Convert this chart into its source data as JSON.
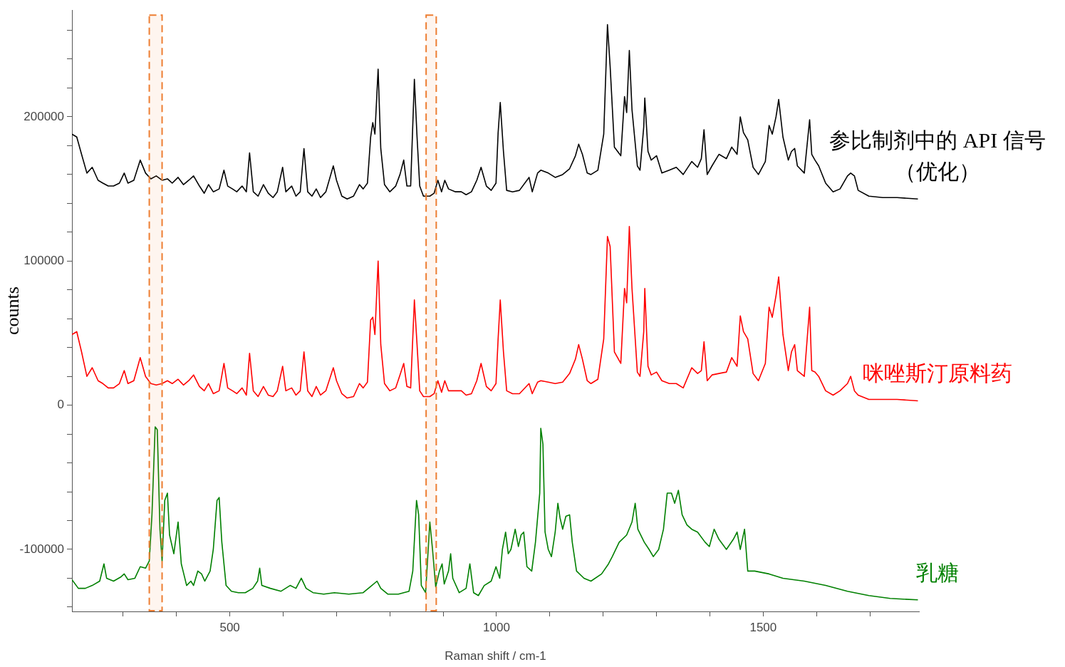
{
  "chart_data": {
    "type": "line",
    "xlabel": "Raman shift / cm-1",
    "ylabel": "counts",
    "xlim": [
      204,
      1792
    ],
    "ylim": [
      -143000,
      274000
    ],
    "xticks": [
      {
        "value": 300,
        "label": null
      },
      {
        "value": 400,
        "label": null
      },
      500,
      {
        "value": 600,
        "label": null
      },
      {
        "value": 700,
        "label": null
      },
      {
        "value": 800,
        "label": null
      },
      {
        "value": 900,
        "label": null
      },
      1000,
      {
        "value": 1100,
        "label": null
      },
      {
        "value": 1200,
        "label": null
      },
      {
        "value": 1300,
        "label": null
      },
      {
        "value": 1400,
        "label": null
      },
      1500,
      {
        "value": 1600,
        "label": null
      },
      {
        "value": 1700,
        "label": null
      }
    ],
    "yticks": [
      {
        "value": -140000,
        "label": null
      },
      {
        "value": -120000,
        "label": null
      },
      -100000,
      {
        "value": -80000,
        "label": null
      },
      {
        "value": -60000,
        "label": null
      },
      {
        "value": -40000,
        "label": null
      },
      {
        "value": -20000,
        "label": null
      },
      0,
      {
        "value": 20000,
        "label": null
      },
      {
        "value": 40000,
        "label": null
      },
      {
        "value": 60000,
        "label": null
      },
      {
        "value": 80000,
        "label": null
      },
      100000,
      {
        "value": 120000,
        "label": null
      },
      {
        "value": 140000,
        "label": null
      },
      {
        "value": 160000,
        "label": null
      },
      {
        "value": 180000,
        "label": null
      },
      200000,
      {
        "value": 220000,
        "label": null
      },
      {
        "value": 240000,
        "label": null
      },
      {
        "value": 260000,
        "label": null
      }
    ],
    "grid": false,
    "legend": false,
    "x": [
      204,
      213,
      222,
      232,
      242,
      253,
      262,
      272,
      282,
      293,
      302,
      309,
      320,
      332,
      342,
      352,
      362,
      373,
      383,
      392,
      403,
      413,
      423,
      432,
      443,
      452,
      460,
      469,
      480,
      489,
      496,
      505,
      513,
      523,
      531,
      537,
      544,
      553,
      563,
      572,
      581,
      589,
      599,
      605,
      616,
      624,
      632,
      639,
      646,
      654,
      662,
      670,
      680,
      694,
      700,
      710,
      720,
      732,
      743,
      750,
      758,
      764,
      768,
      772,
      778,
      783,
      790,
      800,
      811,
      819,
      826,
      832,
      839,
      846,
      851,
      856,
      863,
      875,
      883,
      890,
      897,
      903,
      910,
      923,
      934,
      943,
      953,
      963,
      971,
      981,
      990,
      999,
      1003,
      1007,
      1013,
      1019,
      1030,
      1043,
      1061,
      1067,
      1077,
      1083,
      1097,
      1110,
      1124,
      1137,
      1148,
      1154,
      1161,
      1170,
      1177,
      1190,
      1201,
      1208,
      1213,
      1221,
      1233,
      1240,
      1244,
      1249,
      1254,
      1264,
      1269,
      1276,
      1278,
      1284,
      1290,
      1300,
      1310,
      1324,
      1337,
      1350,
      1366,
      1377,
      1384,
      1389,
      1395,
      1404,
      1417,
      1431,
      1441,
      1451,
      1457,
      1463,
      1471,
      1481,
      1491,
      1504,
      1511,
      1517,
      1524,
      1529,
      1537,
      1547,
      1553,
      1559,
      1564,
      1577,
      1587,
      1591,
      1597,
      1604,
      1617,
      1631,
      1644,
      1658,
      1664,
      1671,
      1678,
      1698,
      1724,
      1751,
      1790
    ],
    "series": [
      {
        "name": "参比制剂中的 API 信号（优化）",
        "color": "#000000",
        "values": [
          188000,
          186000,
          174000,
          161000,
          165000,
          156000,
          154000,
          152000,
          152000,
          154000,
          161000,
          154000,
          156000,
          170000,
          161000,
          157000,
          159000,
          156000,
          157000,
          154000,
          158000,
          153000,
          156000,
          159000,
          152000,
          147000,
          153000,
          148000,
          150000,
          163000,
          152000,
          150000,
          148000,
          152000,
          148000,
          175000,
          148000,
          145000,
          153000,
          147000,
          144000,
          148000,
          165000,
          148000,
          152000,
          145000,
          148000,
          178000,
          148000,
          145000,
          150000,
          144000,
          148000,
          166000,
          156000,
          145000,
          143000,
          145000,
          153000,
          150000,
          154000,
          186000,
          196000,
          188000,
          233000,
          178000,
          153000,
          148000,
          152000,
          160000,
          170000,
          152000,
          152000,
          226000,
          186000,
          152000,
          145000,
          145000,
          147000,
          156000,
          148000,
          156000,
          150000,
          148000,
          148000,
          146000,
          148000,
          156000,
          165000,
          152000,
          149000,
          154000,
          189000,
          210000,
          176000,
          149000,
          148000,
          149000,
          158000,
          148000,
          161000,
          163000,
          161000,
          158000,
          160000,
          164000,
          173000,
          181000,
          174000,
          161000,
          160000,
          163000,
          188000,
          264000,
          235000,
          179000,
          173000,
          214000,
          203000,
          246000,
          205000,
          166000,
          163000,
          193000,
          213000,
          176000,
          170000,
          173000,
          161000,
          163000,
          165000,
          160000,
          169000,
          165000,
          171000,
          191000,
          160000,
          166000,
          174000,
          171000,
          179000,
          174000,
          200000,
          189000,
          184000,
          165000,
          160000,
          169000,
          194000,
          188000,
          200000,
          212000,
          186000,
          170000,
          176000,
          178000,
          166000,
          161000,
          198000,
          174000,
          170000,
          166000,
          154000,
          148000,
          150000,
          159000,
          161000,
          159000,
          149000,
          145000,
          144000,
          144000,
          143000
        ]
      },
      {
        "name": "咪唑斯汀原料药",
        "color": "#ff0000",
        "values": [
          49000,
          51000,
          37000,
          20000,
          26000,
          17000,
          15000,
          12000,
          12000,
          15000,
          24000,
          15000,
          17000,
          33000,
          20000,
          15000,
          14000,
          15000,
          17000,
          15000,
          18000,
          14000,
          17000,
          21000,
          13000,
          10000,
          15000,
          8000,
          10000,
          29000,
          12000,
          10000,
          8000,
          12000,
          7000,
          36000,
          10000,
          6000,
          13000,
          7000,
          6000,
          10000,
          27000,
          10000,
          12000,
          7000,
          10000,
          37000,
          10000,
          6000,
          13000,
          7000,
          10000,
          26000,
          17000,
          8000,
          5000,
          6000,
          15000,
          12000,
          16000,
          59000,
          61000,
          49000,
          100000,
          42000,
          15000,
          10000,
          12000,
          21000,
          29000,
          13000,
          12000,
          73000,
          42000,
          10000,
          6000,
          6000,
          8000,
          17000,
          9000,
          17000,
          10000,
          10000,
          10000,
          7000,
          8000,
          17000,
          29000,
          13000,
          10000,
          15000,
          46000,
          73000,
          37000,
          10000,
          8000,
          8000,
          15000,
          8000,
          16000,
          17000,
          16000,
          15000,
          16000,
          22000,
          32000,
          42000,
          32000,
          17000,
          15000,
          18000,
          46000,
          117000,
          110000,
          37000,
          29000,
          81000,
          71000,
          124000,
          81000,
          23000,
          20000,
          51000,
          81000,
          27000,
          21000,
          23000,
          17000,
          15000,
          15000,
          12000,
          26000,
          22000,
          24000,
          44000,
          17000,
          21000,
          22000,
          23000,
          33000,
          27000,
          62000,
          51000,
          46000,
          22000,
          17000,
          29000,
          68000,
          61000,
          76000,
          89000,
          49000,
          24000,
          37000,
          42000,
          24000,
          20000,
          68000,
          24000,
          23000,
          20000,
          10000,
          7000,
          10000,
          15000,
          20000,
          10000,
          7000,
          4000,
          4000,
          4000,
          3000
        ]
      },
      {
        "name": "乳糖",
        "color": "#008000",
        "x": [
          204,
          216,
          229,
          242,
          256,
          264,
          269,
          282,
          296,
          302,
          309,
          322,
          332,
          342,
          349,
          354,
          360,
          364,
          369,
          373,
          378,
          383,
          387,
          395,
          403,
          409,
          419,
          427,
          432,
          440,
          447,
          453,
          463,
          469,
          476,
          480,
          485,
          493,
          503,
          516,
          529,
          543,
          552,
          556,
          560,
          576,
          596,
          613,
          624,
          634,
          643,
          656,
          676,
          696,
          723,
          750,
          763,
          776,
          783,
          796,
          816,
          836,
          843,
          850,
          854,
          859,
          867,
          875,
          880,
          886,
          893,
          898,
          902,
          910,
          914,
          918,
          930,
          943,
          950,
          957,
          966,
          977,
          990,
          999,
          1006,
          1011,
          1017,
          1022,
          1027,
          1035,
          1041,
          1046,
          1051,
          1057,
          1066,
          1073,
          1081,
          1083,
          1087,
          1091,
          1097,
          1103,
          1110,
          1115,
          1119,
          1124,
          1130,
          1137,
          1142,
          1150,
          1164,
          1177,
          1197,
          1210,
          1217,
          1230,
          1244,
          1254,
          1260,
          1265,
          1277,
          1286,
          1294,
          1304,
          1313,
          1320,
          1328,
          1334,
          1341,
          1348,
          1357,
          1366,
          1377,
          1391,
          1399,
          1408,
          1417,
          1431,
          1444,
          1451,
          1457,
          1465,
          1471,
          1484,
          1511,
          1537,
          1577,
          1617,
          1658,
          1698,
          1738,
          1790
        ],
        "values": [
          -121000,
          -127000,
          -127000,
          -125000,
          -122000,
          -110000,
          -120000,
          -122000,
          -119000,
          -117000,
          -121000,
          -120000,
          -112000,
          -113000,
          -108000,
          -76000,
          -15000,
          -17000,
          -86000,
          -108000,
          -66000,
          -61000,
          -90000,
          -103000,
          -81000,
          -110000,
          -125000,
          -122000,
          -125000,
          -115000,
          -117000,
          -122000,
          -115000,
          -100000,
          -66000,
          -64000,
          -95000,
          -125000,
          -129000,
          -130000,
          -130000,
          -127000,
          -122000,
          -113000,
          -125000,
          -127000,
          -129000,
          -125000,
          -127000,
          -120000,
          -127000,
          -130000,
          -131000,
          -130000,
          -131000,
          -130000,
          -126000,
          -122000,
          -127000,
          -131000,
          -131000,
          -129000,
          -115000,
          -66000,
          -76000,
          -125000,
          -130000,
          -81000,
          -100000,
          -126000,
          -115000,
          -110000,
          -124000,
          -115000,
          -103000,
          -120000,
          -130000,
          -127000,
          -110000,
          -130000,
          -132000,
          -125000,
          -122000,
          -112000,
          -120000,
          -100000,
          -88000,
          -103000,
          -100000,
          -86000,
          -98000,
          -90000,
          -88000,
          -112000,
          -115000,
          -95000,
          -61000,
          -16000,
          -27000,
          -88000,
          -100000,
          -105000,
          -88000,
          -68000,
          -78000,
          -86000,
          -77000,
          -76000,
          -95000,
          -115000,
          -120000,
          -122000,
          -117000,
          -110000,
          -105000,
          -95000,
          -90000,
          -81000,
          -68000,
          -86000,
          -95000,
          -100000,
          -105000,
          -100000,
          -86000,
          -61000,
          -61000,
          -68000,
          -59000,
          -76000,
          -83000,
          -86000,
          -88000,
          -95000,
          -98000,
          -86000,
          -93000,
          -100000,
          -93000,
          -88000,
          -100000,
          -86000,
          -115000,
          -115000,
          -117000,
          -120000,
          -122000,
          -125000,
          -129000,
          -132000,
          -134000,
          -135000
        ]
      }
    ],
    "bands": [
      {
        "axis": "x",
        "from": 349,
        "to": 373,
        "color": "#ed7d31"
      },
      {
        "axis": "x",
        "from": 868,
        "to": 887,
        "color": "#ed7d31"
      }
    ]
  }
}
